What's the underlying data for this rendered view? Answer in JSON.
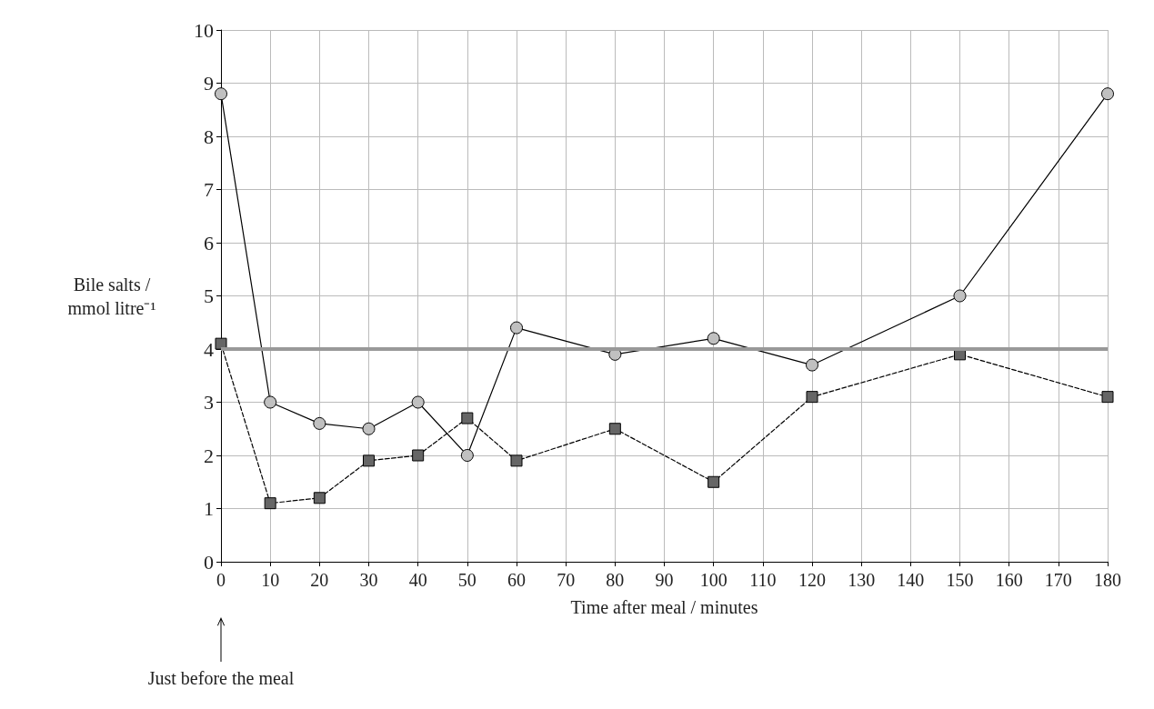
{
  "chart_data": {
    "type": "line",
    "xlabel": "Time after meal / minutes",
    "ylabel": "Bile salts /\nmmol litre⁻¹",
    "x": [
      0,
      10,
      20,
      30,
      40,
      50,
      60,
      80,
      100,
      120,
      150,
      180
    ],
    "series": [
      {
        "color": "#c0c0c0",
        "marker": "circle",
        "line_style": "solid",
        "values": [
          8.8,
          3.0,
          2.6,
          2.5,
          3.0,
          2.0,
          4.4,
          3.9,
          4.2,
          3.7,
          5.0,
          8.8
        ]
      },
      {
        "color": "#666666",
        "marker": "square",
        "line_style": "dashed",
        "values": [
          4.1,
          1.1,
          1.2,
          1.9,
          2.0,
          2.7,
          1.9,
          2.5,
          1.5,
          3.1,
          3.9,
          3.1
        ]
      }
    ],
    "xlim": [
      0,
      180
    ],
    "xticks": [
      0,
      10,
      20,
      30,
      40,
      50,
      60,
      70,
      80,
      90,
      100,
      110,
      120,
      130,
      140,
      150,
      160,
      170,
      180
    ],
    "ylim": [
      0,
      10
    ],
    "yticks": [
      0,
      1,
      2,
      3,
      4,
      5,
      6,
      7,
      8,
      9,
      10
    ],
    "grid": true,
    "ref_lines": [
      {
        "axis": "y",
        "value": 4,
        "color": "#999999"
      }
    ],
    "annotations": [
      "Just before the meal"
    ]
  }
}
